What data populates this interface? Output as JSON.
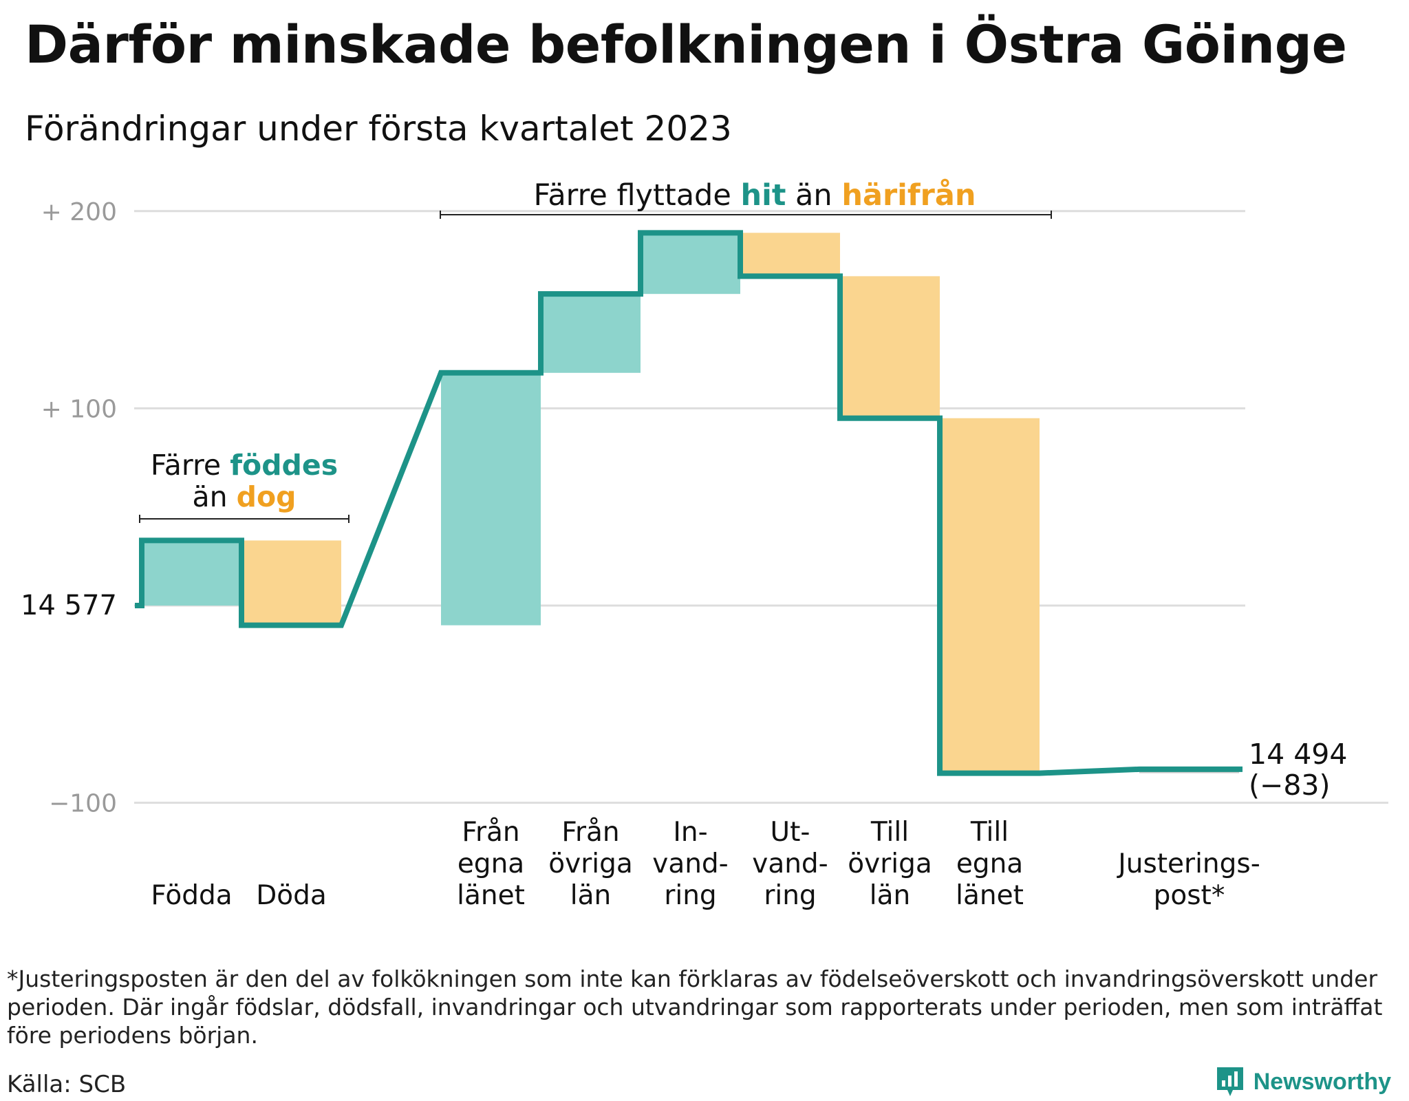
{
  "title": "Därför minskade befolkningen i Östra Göinge",
  "subtitle": "Förändringar under första kvartalet 2023",
  "colors": {
    "increase": "#8dd4cc",
    "decrease": "#fad58f",
    "line": "#1d9388",
    "accent_orange": "#f0a020",
    "grid": "#dddddd",
    "tick_text": "#9a9a9a",
    "adjustment": "#cccccc"
  },
  "annotations": {
    "births_deaths": {
      "line1_prefix": "Färre ",
      "line1_highlight": "föddes",
      "line2_prefix": "än ",
      "line2_highlight": "dog"
    },
    "migration": {
      "prefix": "Färre flyttade ",
      "highlight1": "hit",
      "middle": " än ",
      "highlight2": "härifrån"
    }
  },
  "chart_data": {
    "type": "waterfall",
    "start_label": "14 577",
    "start_value": 14577,
    "end_label": "14 494",
    "end_change_label": "(−83)",
    "end_value": 14494,
    "y_axis": {
      "unit": "change from start",
      "ticks": [
        {
          "value": 200,
          "label": "+ 200"
        },
        {
          "value": 100,
          "label": "+ 100"
        },
        {
          "value": 0,
          "label": "14 577"
        },
        {
          "value": -100,
          "label": "−100"
        }
      ],
      "ylim": [
        -100,
        200
      ]
    },
    "grid": true,
    "steps": [
      {
        "label_lines": [
          "Födda"
        ],
        "change": 33
      },
      {
        "label_lines": [
          "Döda"
        ],
        "change": -43
      },
      {
        "label_lines": [
          "Från",
          "egna",
          "länet"
        ],
        "change": 128
      },
      {
        "label_lines": [
          "Från",
          "övriga",
          "län"
        ],
        "change": 40
      },
      {
        "label_lines": [
          "In-",
          "vand-",
          "ring"
        ],
        "change": 31
      },
      {
        "label_lines": [
          "Ut-",
          "vand-",
          "ring"
        ],
        "change": -22
      },
      {
        "label_lines": [
          "Till",
          "övriga",
          "län"
        ],
        "change": -72
      },
      {
        "label_lines": [
          "Till",
          "egna",
          "länet"
        ],
        "change": -180
      },
      {
        "label_lines": [
          "Justerings-",
          "post*"
        ],
        "change": 2
      }
    ]
  },
  "footnote": "*Justeringsposten är den del av folkökningen som inte kan förklaras av födelseöverskott och invandringsöverskott under perioden. Där ingår födslar, dödsfall, invandringar och utvandringar som rapporterats under perioden, men som inträffat före periodens början.",
  "source": "Källa: SCB",
  "brand": {
    "name": "Newsworthy",
    "logo_icon": "newsworthy-logo-icon"
  }
}
